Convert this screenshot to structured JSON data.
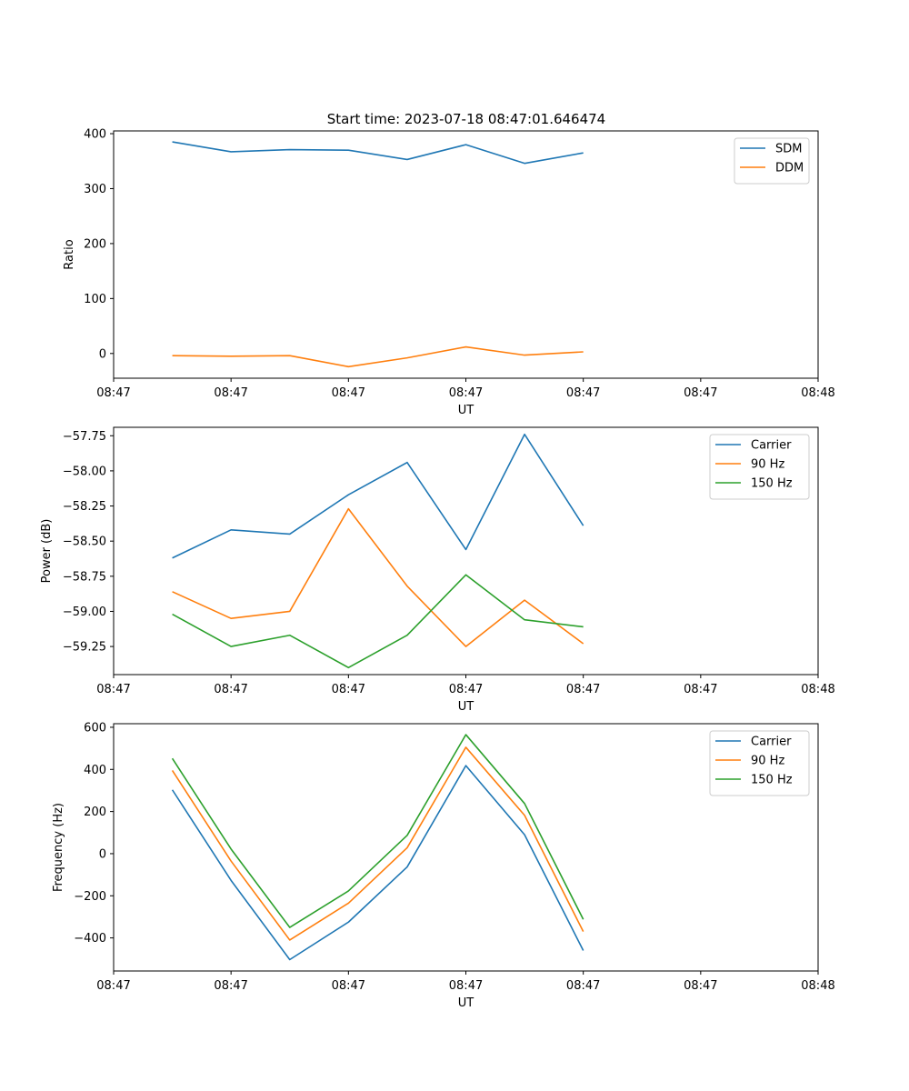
{
  "figure_title": "Start time: 2023-07-18 08:47:01.646474",
  "colors": {
    "blue": "#1f77b4",
    "orange": "#ff7f0e",
    "green": "#2ca02c"
  },
  "chart_data": [
    {
      "type": "line",
      "title": "Start time: 2023-07-18 08:47:01.646474",
      "xlabel": "UT",
      "ylabel": "Ratio",
      "xlim": [
        0,
        12
      ],
      "ylim": [
        -45,
        405
      ],
      "x": [
        1,
        2,
        3,
        4,
        5,
        6,
        7,
        8
      ],
      "xticks": [
        0,
        2,
        4,
        6,
        8,
        10,
        12
      ],
      "xtick_labels": [
        "08:47",
        "08:47",
        "08:47",
        "08:47",
        "08:47",
        "08:47",
        "08:48"
      ],
      "yticks": [
        0,
        100,
        200,
        300,
        400
      ],
      "ytick_labels": [
        "0",
        "100",
        "200",
        "300",
        "400"
      ],
      "legend_position": "top-right",
      "series": [
        {
          "name": "SDM",
          "color": "#1f77b4",
          "values": [
            385,
            367,
            371,
            370,
            353,
            380,
            346,
            365
          ]
        },
        {
          "name": "DDM",
          "color": "#ff7f0e",
          "values": [
            -4,
            -5,
            -4,
            -24,
            -8,
            12,
            -3,
            3
          ]
        }
      ]
    },
    {
      "type": "line",
      "title": "",
      "xlabel": "UT",
      "ylabel": "Power (dB)",
      "xlim": [
        0,
        12
      ],
      "ylim": [
        -59.45,
        -57.69
      ],
      "x": [
        1,
        2,
        3,
        4,
        5,
        6,
        7,
        8
      ],
      "xticks": [
        0,
        2,
        4,
        6,
        8,
        10,
        12
      ],
      "xtick_labels": [
        "08:47",
        "08:47",
        "08:47",
        "08:47",
        "08:47",
        "08:47",
        "08:48"
      ],
      "yticks": [
        -59.25,
        -59.0,
        -58.75,
        -58.5,
        -58.25,
        -58.0,
        -57.75
      ],
      "ytick_labels": [
        "−59.25",
        "−59.00",
        "−58.75",
        "−58.50",
        "−58.25",
        "−58.00",
        "−57.75"
      ],
      "legend_position": "top-right",
      "series": [
        {
          "name": "Carrier",
          "color": "#1f77b4",
          "values": [
            -58.62,
            -58.42,
            -58.45,
            -58.17,
            -57.94,
            -58.56,
            -57.74,
            -58.39
          ]
        },
        {
          "name": "90 Hz",
          "color": "#ff7f0e",
          "values": [
            -58.86,
            -59.05,
            -59.0,
            -58.27,
            -58.82,
            -59.25,
            -58.92,
            -59.23
          ]
        },
        {
          "name": "150 Hz",
          "color": "#2ca02c",
          "values": [
            -59.02,
            -59.25,
            -59.17,
            -59.4,
            -59.17,
            -58.74,
            -59.06,
            -59.11
          ]
        }
      ]
    },
    {
      "type": "line",
      "title": "",
      "xlabel": "UT",
      "ylabel": "Frequency (Hz)",
      "xlim": [
        0,
        12
      ],
      "ylim": [
        -557,
        617
      ],
      "x": [
        1,
        2,
        3,
        4,
        5,
        6,
        7,
        8
      ],
      "xticks": [
        0,
        2,
        4,
        6,
        8,
        10,
        12
      ],
      "xtick_labels": [
        "08:47",
        "08:47",
        "08:47",
        "08:47",
        "08:47",
        "08:47",
        "08:48"
      ],
      "yticks": [
        -400,
        -200,
        0,
        200,
        400,
        600
      ],
      "ytick_labels": [
        "−400",
        "−200",
        "0",
        "200",
        "400",
        "600"
      ],
      "legend_position": "top-right",
      "series": [
        {
          "name": "Carrier",
          "color": "#1f77b4",
          "values": [
            303,
            -127,
            -503,
            -325,
            -63,
            418,
            90,
            -460
          ]
        },
        {
          "name": "90 Hz",
          "color": "#ff7f0e",
          "values": [
            395,
            -35,
            -410,
            -235,
            28,
            505,
            182,
            -370
          ]
        },
        {
          "name": "150 Hz",
          "color": "#2ca02c",
          "values": [
            452,
            22,
            -350,
            -177,
            87,
            565,
            238,
            -312
          ]
        }
      ]
    }
  ]
}
